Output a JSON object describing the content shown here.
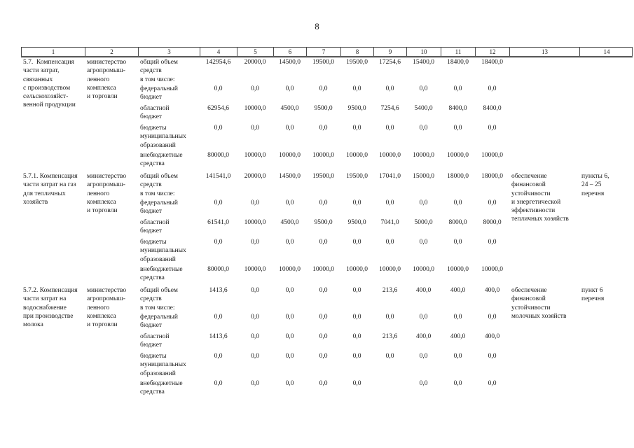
{
  "page": {
    "number": "8"
  },
  "table": {
    "header_columns": [
      "1",
      "2",
      "3",
      "4",
      "5",
      "6",
      "7",
      "8",
      "9",
      "10",
      "11",
      "12",
      "13",
      "14"
    ],
    "sections": [
      {
        "name_lines": [
          "5.7.  Компенсация",
          "части затрат,",
          "связанных",
          "с производством",
          "сельскохозяйст-",
          "венной продукции"
        ],
        "executor_lines": [
          "министерство",
          "агропромыш-",
          "ленного",
          "комплекса",
          "и торговли"
        ],
        "rows": [
          {
            "label_lines": [
              "общий объем",
              "средств"
            ],
            "values": [
              "142954,6",
              "20000,0",
              "14500,0",
              "19500,0",
              "19500,0",
              "17254,6",
              "15400,0",
              "18400,0",
              "18400,0"
            ]
          },
          {
            "label_lines": [
              "в том числе:"
            ],
            "values": []
          },
          {
            "label_lines": [
              "федеральный",
              "бюджет"
            ],
            "values": [
              "0,0",
              "0,0",
              "0,0",
              "0,0",
              "0,0",
              "0,0",
              "0,0",
              "0,0",
              "0,0"
            ]
          },
          {
            "label_lines": [
              "областной",
              "бюджет"
            ],
            "values": [
              "62954,6",
              "10000,0",
              "4500,0",
              "9500,0",
              "9500,0",
              "7254,6",
              "5400,0",
              "8400,0",
              "8400,0"
            ]
          },
          {
            "label_lines": [
              "бюджеты",
              "муниципальных",
              "образований"
            ],
            "values": [
              "0,0",
              "0,0",
              "0,0",
              "0,0",
              "0,0",
              "0,0",
              "0,0",
              "0,0",
              "0,0"
            ]
          },
          {
            "label_lines": [
              "внебюджетные",
              "средства"
            ],
            "values": [
              "80000,0",
              "10000,0",
              "10000,0",
              "10000,0",
              "10000,0",
              "10000,0",
              "10000,0",
              "10000,0",
              "10000,0"
            ]
          }
        ],
        "expected_result_lines": [],
        "list_ref_lines": []
      },
      {
        "name_lines": [
          "5.7.1. Компенсация",
          "части затрат на газ",
          "для тепличных",
          "хозяйств"
        ],
        "executor_lines": [
          "министерство",
          "агропромыш-",
          "ленного",
          "комплекса",
          "и торговли"
        ],
        "rows": [
          {
            "label_lines": [
              "общий объем",
              "средств"
            ],
            "values": [
              "141541,0",
              "20000,0",
              "14500,0",
              "19500,0",
              "19500,0",
              "17041,0",
              "15000,0",
              "18000,0",
              "18000,0"
            ]
          },
          {
            "label_lines": [
              "в том числе:"
            ],
            "values": []
          },
          {
            "label_lines": [
              "федеральный",
              "бюджет"
            ],
            "values": [
              "0,0",
              "0,0",
              "0,0",
              "0,0",
              "0,0",
              "0,0",
              "0,0",
              "0,0",
              "0,0"
            ]
          },
          {
            "label_lines": [
              "областной",
              "бюджет"
            ],
            "values": [
              "61541,0",
              "10000,0",
              "4500,0",
              "9500,0",
              "9500,0",
              "7041,0",
              "5000,0",
              "8000,0",
              "8000,0"
            ]
          },
          {
            "label_lines": [
              "бюджеты",
              "муниципальных",
              "образований"
            ],
            "values": [
              "0,0",
              "0,0",
              "0,0",
              "0,0",
              "0,0",
              "0,0",
              "0,0",
              "0,0",
              "0,0"
            ]
          },
          {
            "label_lines": [
              "внебюджетные",
              "средства"
            ],
            "values": [
              "80000,0",
              "10000,0",
              "10000,0",
              "10000,0",
              "10000,0",
              "10000,0",
              "10000,0",
              "10000,0",
              "10000,0"
            ]
          }
        ],
        "expected_result_lines": [
          "обеспечение",
          "финансовой",
          "устойчивости",
          "и энергетической",
          "эффективности",
          "тепличных хозяйств"
        ],
        "list_ref_lines": [
          "пункты 6,",
          "24 – 25",
          "перечня"
        ]
      },
      {
        "name_lines": [
          "5.7.2. Компенсация",
          "части затрат на",
          "водоснабжение",
          "при производстве",
          "молока"
        ],
        "executor_lines": [
          "министерство",
          "агропромыш-",
          "ленного",
          "комплекса",
          "и торговли"
        ],
        "rows": [
          {
            "label_lines": [
              "общий объем",
              "средств"
            ],
            "values": [
              "1413,6",
              "0,0",
              "0,0",
              "0,0",
              "0,0",
              "213,6",
              "400,0",
              "400,0",
              "400,0"
            ]
          },
          {
            "label_lines": [
              "в том числе:"
            ],
            "values": []
          },
          {
            "label_lines": [
              "федеральный",
              "бюджет"
            ],
            "values": [
              "0,0",
              "0,0",
              "0,0",
              "0,0",
              "0,0",
              "0,0",
              "0,0",
              "0,0",
              "0,0"
            ]
          },
          {
            "label_lines": [
              "областной",
              "бюджет"
            ],
            "values": [
              "1413,6",
              "0,0",
              "0,0",
              "0,0",
              "0,0",
              "213,6",
              "400,0",
              "400,0",
              "400,0"
            ]
          },
          {
            "label_lines": [
              "бюджеты",
              "муниципальных",
              "образований"
            ],
            "values": [
              "0,0",
              "0,0",
              "0,0",
              "0,0",
              "0,0",
              "0,0",
              "0,0",
              "0,0",
              "0,0"
            ]
          },
          {
            "label_lines": [
              "внебюджетные",
              "средства"
            ],
            "values": [
              "0,0",
              "0,0",
              "0,0",
              "0,0",
              "0,0",
              "",
              "0,0",
              "0,0",
              "0,0"
            ]
          }
        ],
        "expected_result_lines": [
          "обеспечение",
          "финансовой",
          "устойчивости",
          "молочных хозяйств"
        ],
        "list_ref_lines": [
          "пункт 6",
          "перечня"
        ]
      }
    ]
  }
}
